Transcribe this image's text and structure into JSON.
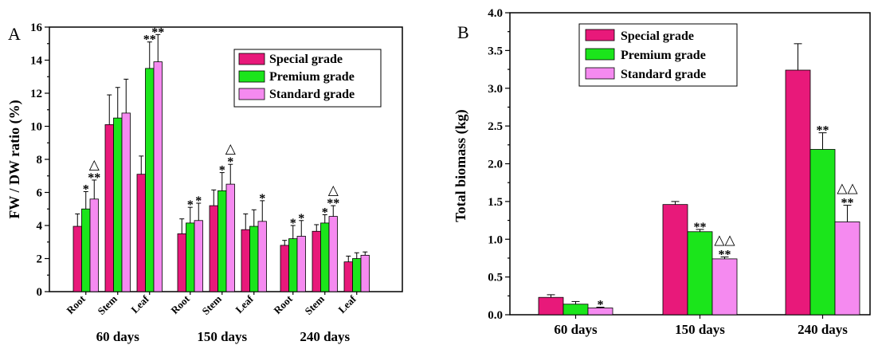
{
  "colors": {
    "special": "#e8197a",
    "premium": "#1be51b",
    "standard": "#f58af0"
  },
  "chart_data": [
    {
      "type": "bar",
      "panel": "A",
      "ylabel": "FW / DW ratio (%)",
      "ylim": [
        0,
        16
      ],
      "yticks": [
        "0",
        "2",
        "4",
        "6",
        "8",
        "10",
        "12",
        "14",
        "16"
      ],
      "legend": [
        "Special grade",
        "Premium grade",
        "Standard grade"
      ],
      "legend_position": "top-right",
      "groups": [
        "60 days",
        "150 days",
        "240 days"
      ],
      "categories": [
        "Root",
        "Stem",
        "Leaf"
      ],
      "series": [
        {
          "name": "Special grade",
          "values": [
            [
              3.95,
              10.1,
              7.1
            ],
            [
              3.5,
              5.2,
              3.75
            ],
            [
              2.8,
              3.65,
              1.8
            ]
          ],
          "errors": [
            [
              0.75,
              1.8,
              1.1
            ],
            [
              0.9,
              0.95,
              0.95
            ],
            [
              0.3,
              0.4,
              0.35
            ]
          ]
        },
        {
          "name": "Premium grade",
          "values": [
            [
              5.0,
              10.5,
              13.5
            ],
            [
              4.15,
              6.1,
              3.95
            ],
            [
              3.2,
              4.15,
              2.0
            ]
          ],
          "errors": [
            [
              1.05,
              1.85,
              1.6
            ],
            [
              0.95,
              1.1,
              1.0
            ],
            [
              0.8,
              0.5,
              0.35
            ]
          ]
        },
        {
          "name": "Standard grade",
          "values": [
            [
              5.6,
              10.8,
              13.9
            ],
            [
              4.3,
              6.5,
              4.25
            ],
            [
              3.35,
              4.55,
              2.2
            ]
          ],
          "errors": [
            [
              1.15,
              2.05,
              1.65
            ],
            [
              1.05,
              1.2,
              1.25
            ],
            [
              0.95,
              0.65,
              0.2
            ]
          ]
        }
      ],
      "annotations": [
        {
          "group": 0,
          "cat": 0,
          "series": 1,
          "text": "*"
        },
        {
          "group": 0,
          "cat": 0,
          "series": 2,
          "text": "**"
        },
        {
          "group": 0,
          "cat": 0,
          "series": 2,
          "text": "△"
        },
        {
          "group": 0,
          "cat": 2,
          "series": 1,
          "text": "**"
        },
        {
          "group": 0,
          "cat": 2,
          "series": 2,
          "text": "**"
        },
        {
          "group": 1,
          "cat": 0,
          "series": 1,
          "text": "*"
        },
        {
          "group": 1,
          "cat": 0,
          "series": 2,
          "text": "*"
        },
        {
          "group": 1,
          "cat": 1,
          "series": 1,
          "text": "*"
        },
        {
          "group": 1,
          "cat": 1,
          "series": 2,
          "text": "*"
        },
        {
          "group": 1,
          "cat": 1,
          "series": 2,
          "text": "△"
        },
        {
          "group": 1,
          "cat": 2,
          "series": 2,
          "text": "*"
        },
        {
          "group": 2,
          "cat": 0,
          "series": 1,
          "text": "*"
        },
        {
          "group": 2,
          "cat": 0,
          "series": 2,
          "text": "*"
        },
        {
          "group": 2,
          "cat": 1,
          "series": 1,
          "text": "*"
        },
        {
          "group": 2,
          "cat": 1,
          "series": 2,
          "text": "**"
        },
        {
          "group": 2,
          "cat": 1,
          "series": 2,
          "text": "△"
        }
      ]
    },
    {
      "type": "bar",
      "panel": "B",
      "ylabel": "Total biomass (kg)",
      "ylim": [
        0,
        4.0
      ],
      "yticks": [
        "0.0",
        "0.5",
        "1.0",
        "1.5",
        "2.0",
        "2.5",
        "3.0",
        "3.5",
        "4.0"
      ],
      "legend": [
        "Special grade",
        "Premium grade",
        "Standard grade"
      ],
      "legend_position": "top-left",
      "categories": [
        "60 days",
        "150 days",
        "240 days"
      ],
      "series": [
        {
          "name": "Special grade",
          "values": [
            0.23,
            1.46,
            3.24
          ],
          "errors": [
            0.035,
            0.04,
            0.35
          ]
        },
        {
          "name": "Premium grade",
          "values": [
            0.14,
            1.1,
            2.19
          ],
          "errors": [
            0.035,
            0.03,
            0.22
          ]
        },
        {
          "name": "Standard grade",
          "values": [
            0.09,
            0.74,
            1.23
          ],
          "errors": [
            0.01,
            0.025,
            0.22
          ]
        }
      ],
      "annotations": [
        {
          "cat": 0,
          "series": 2,
          "text": "*"
        },
        {
          "cat": 1,
          "series": 1,
          "text": "**"
        },
        {
          "cat": 1,
          "series": 2,
          "text": "**"
        },
        {
          "cat": 1,
          "series": 2,
          "text": "△△"
        },
        {
          "cat": 2,
          "series": 1,
          "text": "**"
        },
        {
          "cat": 2,
          "series": 2,
          "text": "**"
        },
        {
          "cat": 2,
          "series": 2,
          "text": "△△"
        }
      ]
    }
  ]
}
